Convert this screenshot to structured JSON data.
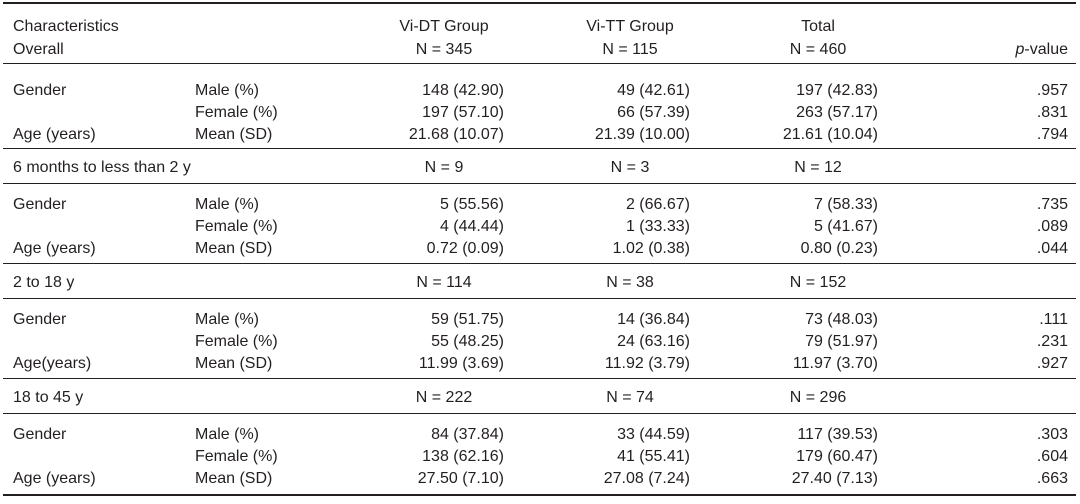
{
  "header": {
    "row1": {
      "c1": "Characteristics",
      "c3": "Vi-DT Group",
      "c4": "Vi-TT Group",
      "c5": "Total"
    },
    "row2": {
      "c1": "Overall",
      "c3": "N = 345",
      "c4": "N = 115",
      "c5": "N = 460",
      "p_prefix": "p",
      "p_suffix": "-value"
    }
  },
  "sections": [
    {
      "rows": [
        {
          "group": "Gender",
          "measure": "Male (%)",
          "vidt": "148 (42.90)",
          "vitt": "49 (42.61)",
          "total": "197 (42.83)",
          "p": ".957"
        },
        {
          "group": "",
          "measure": "Female (%)",
          "vidt": "197 (57.10)",
          "vitt": "66 (57.39)",
          "total": "263 (57.17)",
          "p": ".831"
        },
        {
          "group": "Age (years)",
          "measure": "Mean (SD)",
          "vidt": "21.68 (10.07)",
          "vitt": "21.39 (10.00)",
          "total": "21.61 (10.04)",
          "p": ".794"
        }
      ]
    },
    {
      "title": "6 months to less than 2 y",
      "n_vidt": "N = 9",
      "n_vitt": "N = 3",
      "n_total": "N = 12",
      "rows": [
        {
          "group": "Gender",
          "measure": "Male (%)",
          "vidt": "5 (55.56)",
          "vitt": "2 (66.67)",
          "total": "7 (58.33)",
          "p": ".735"
        },
        {
          "group": "",
          "measure": "Female (%)",
          "vidt": "4 (44.44)",
          "vitt": "1 (33.33)",
          "total": "5 (41.67)",
          "p": ".089"
        },
        {
          "group": "Age (years)",
          "measure": "Mean (SD)",
          "vidt": "0.72 (0.09)",
          "vitt": "1.02 (0.38)",
          "total": "0.80 (0.23)",
          "p": ".044"
        }
      ]
    },
    {
      "title": "2 to 18 y",
      "n_vidt": "N = 114",
      "n_vitt": "N = 38",
      "n_total": "N = 152",
      "rows": [
        {
          "group": "Gender",
          "measure": "Male (%)",
          "vidt": "59 (51.75)",
          "vitt": "14 (36.84)",
          "total": "73 (48.03)",
          "p": ".111"
        },
        {
          "group": "",
          "measure": "Female (%)",
          "vidt": "55 (48.25)",
          "vitt": "24 (63.16)",
          "total": "79 (51.97)",
          "p": ".231"
        },
        {
          "group": "Age(years)",
          "measure": "Mean (SD)",
          "vidt": "11.99 (3.69)",
          "vitt": "11.92 (3.79)",
          "total": "11.97 (3.70)",
          "p": ".927"
        }
      ]
    },
    {
      "title": "18 to 45 y",
      "n_vidt": "N = 222",
      "n_vitt": "N = 74",
      "n_total": "N = 296",
      "rows": [
        {
          "group": "Gender",
          "measure": "Male (%)",
          "vidt": "84 (37.84)",
          "vitt": "33 (44.59)",
          "total": "117 (39.53)",
          "p": ".303"
        },
        {
          "group": "",
          "measure": "Female (%)",
          "vidt": "138 (62.16)",
          "vitt": "41 (55.41)",
          "total": "179 (60.47)",
          "p": ".604"
        },
        {
          "group": "Age (years)",
          "measure": "Mean (SD)",
          "vidt": "27.50 (7.10)",
          "vitt": "27.08 (7.24)",
          "total": "27.40 (7.13)",
          "p": ".663"
        }
      ]
    }
  ]
}
